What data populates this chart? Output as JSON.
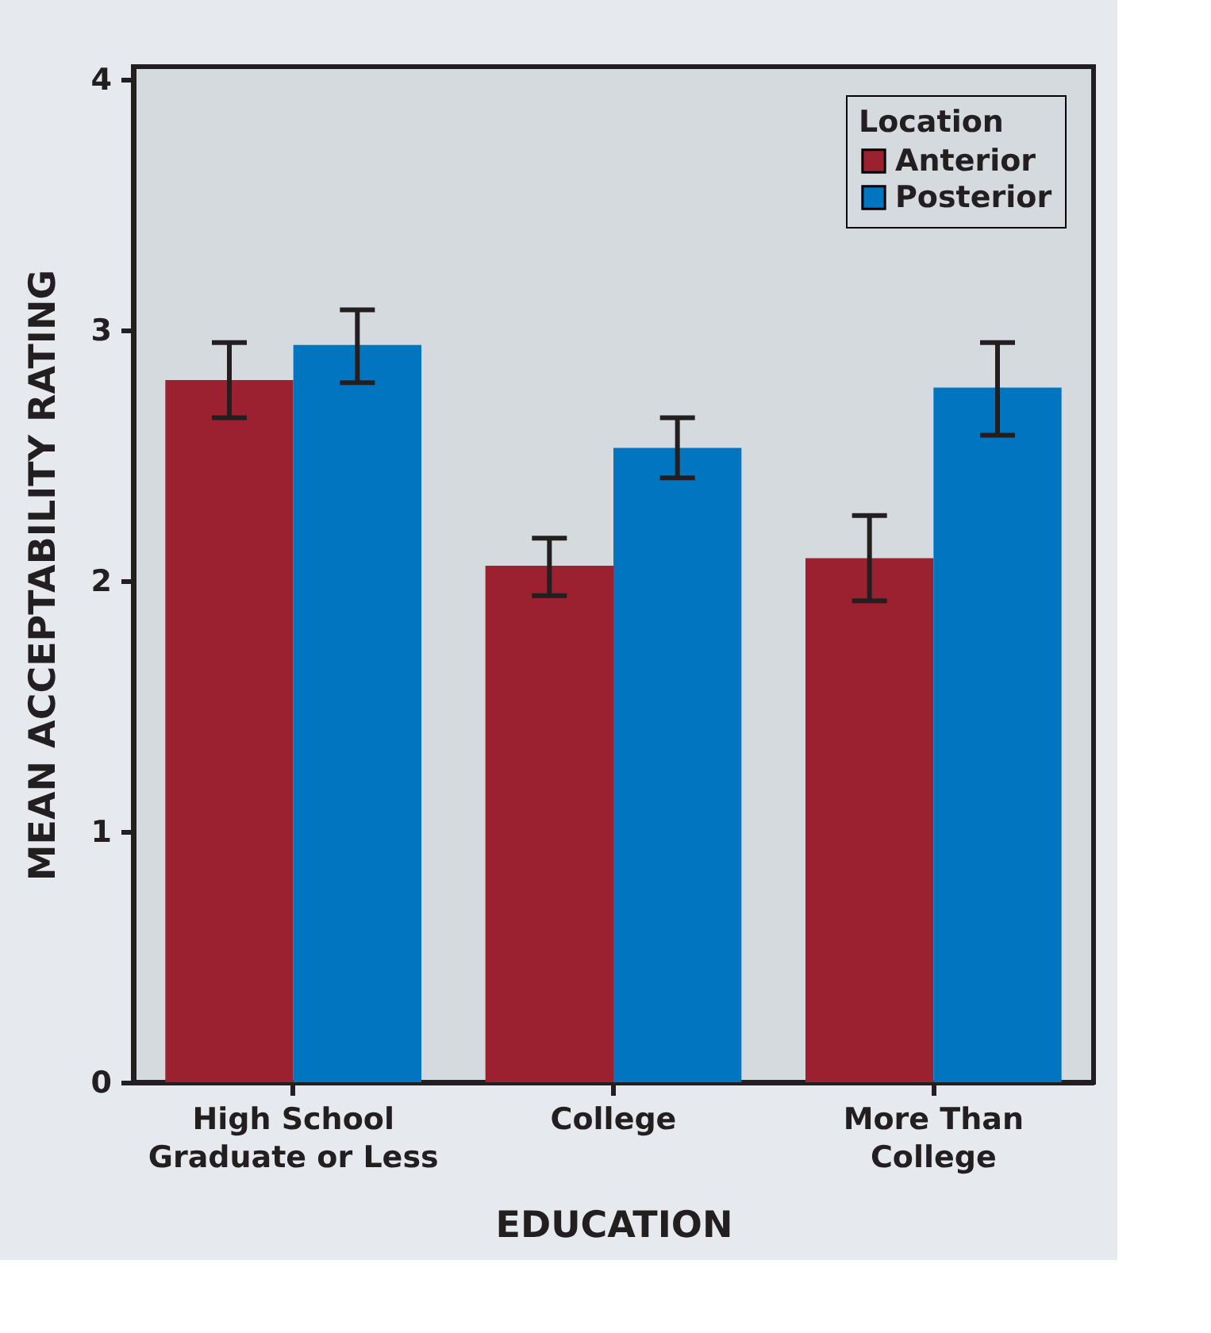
{
  "chart_data": {
    "type": "bar",
    "xlabel": "EDUCATION",
    "ylabel": "MEAN ACCEPTABILITY RATING",
    "legend_title": "Location",
    "categories": [
      "High School\nGraduate or Less",
      "College",
      "More Than\nCollege"
    ],
    "series": [
      {
        "name": "Anterior",
        "color": "#9b2131",
        "values": [
          2.8,
          2.06,
          2.09
        ],
        "errors": [
          [
            2.65,
            2.95
          ],
          [
            1.94,
            2.17
          ],
          [
            1.92,
            2.26
          ]
        ]
      },
      {
        "name": "Posterior",
        "color": "#0175bf",
        "values": [
          2.94,
          2.53,
          2.77
        ],
        "errors": [
          [
            2.79,
            3.08
          ],
          [
            2.41,
            2.65
          ],
          [
            2.58,
            2.95
          ]
        ]
      }
    ],
    "ylim": [
      0,
      4.05
    ],
    "yticks": [
      0,
      1,
      2,
      3,
      4
    ],
    "grid": false,
    "legend": "top right"
  }
}
